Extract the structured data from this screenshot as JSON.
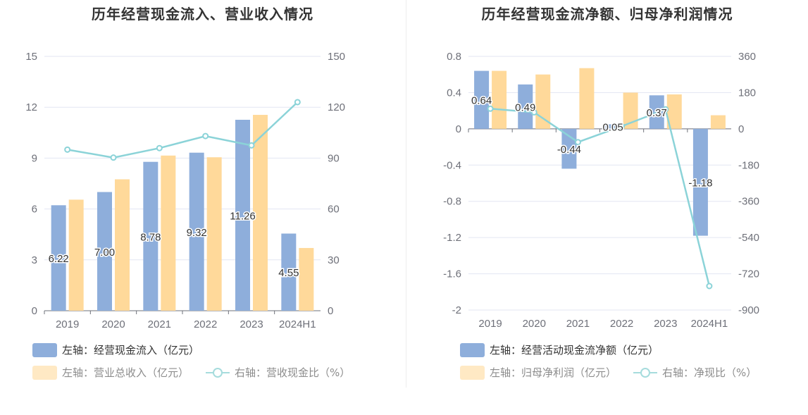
{
  "colors": {
    "blue": "#8eaedb",
    "orange": "#ffd99a",
    "line": "#8bd3d8",
    "grid": "#e3e6f2",
    "axis_text": "#6e7079"
  },
  "panels": [
    {
      "title": "历年经营现金流入、营业收入情况",
      "legend": {
        "bar1": "左轴：经营现金流入（亿元）",
        "bar2": "左轴：营业总收入（亿元）",
        "line": "右轴：营收现金比（%）"
      }
    },
    {
      "title": "历年经营现金流净额、归母净利润情况",
      "legend": {
        "bar1": "左轴：经营活动现金流净额（亿元）",
        "bar2": "左轴：归母净利润（亿元）",
        "line": "右轴：净现比（%）"
      }
    }
  ],
  "chart_data": [
    {
      "type": "bar",
      "title": "历年经营现金流入、营业收入情况",
      "categories": [
        "2019",
        "2020",
        "2021",
        "2022",
        "2023",
        "2024H1"
      ],
      "left_axis": {
        "range": [
          0,
          15
        ],
        "ticks": [
          0,
          3,
          6,
          9,
          12,
          15
        ]
      },
      "right_axis": {
        "range": [
          0,
          150
        ],
        "ticks": [
          0,
          30,
          60,
          90,
          120,
          150
        ]
      },
      "series": [
        {
          "name": "左轴：经营现金流入（亿元）",
          "type": "bar",
          "axis": "left",
          "values": [
            6.22,
            7.0,
            8.78,
            9.32,
            11.26,
            4.55
          ],
          "labels": [
            "6.22",
            "7.00",
            "8.78",
            "9.32",
            "11.26",
            "4.55"
          ]
        },
        {
          "name": "左轴：营业总收入（亿元）",
          "type": "bar",
          "axis": "left",
          "values": [
            6.55,
            7.75,
            9.15,
            9.05,
            11.55,
            3.7
          ]
        },
        {
          "name": "右轴：营收现金比（%）",
          "type": "line",
          "axis": "right",
          "values": [
            95,
            90.3,
            95.9,
            103,
            97.5,
            123
          ]
        }
      ],
      "grid": true,
      "legend_position": "bottom-left"
    },
    {
      "type": "bar",
      "title": "历年经营现金流净额、归母净利润情况",
      "categories": [
        "2019",
        "2020",
        "2021",
        "2022",
        "2023",
        "2024H1"
      ],
      "left_axis": {
        "range": [
          -2,
          0.8
        ],
        "ticks": [
          0.8,
          0.4,
          0,
          -0.4,
          -0.8,
          -1.2,
          -1.6,
          -2
        ],
        "tick_labels": [
          "0.8",
          "0.4",
          "0",
          "-0.4",
          "-0.8",
          "-1.2",
          "-1.6",
          "-2"
        ]
      },
      "right_axis": {
        "range": [
          -900,
          360
        ],
        "ticks": [
          360,
          180,
          0,
          -180,
          -360,
          -540,
          -720,
          -900
        ],
        "tick_labels": [
          "360",
          "180",
          "0",
          "-180",
          "-360",
          "-540",
          "-720",
          "-900"
        ]
      },
      "series": [
        {
          "name": "左轴：经营活动现金流净额（亿元）",
          "type": "bar",
          "axis": "left",
          "values": [
            0.64,
            0.49,
            -0.44,
            0.05,
            0.37,
            -1.18
          ],
          "labels": [
            "0.64",
            "0.49",
            "-0.44",
            "0.05",
            "0.37",
            "-1.18"
          ]
        },
        {
          "name": "左轴：归母净利润（亿元）",
          "type": "bar",
          "axis": "left",
          "values": [
            0.64,
            0.6,
            0.67,
            0.4,
            0.38,
            0.15
          ]
        },
        {
          "name": "右轴：净现比（%）",
          "type": "line",
          "axis": "right",
          "values": [
            100,
            82,
            -66,
            13,
            97,
            -781
          ]
        }
      ],
      "grid": true,
      "legend_position": "bottom-left"
    }
  ]
}
